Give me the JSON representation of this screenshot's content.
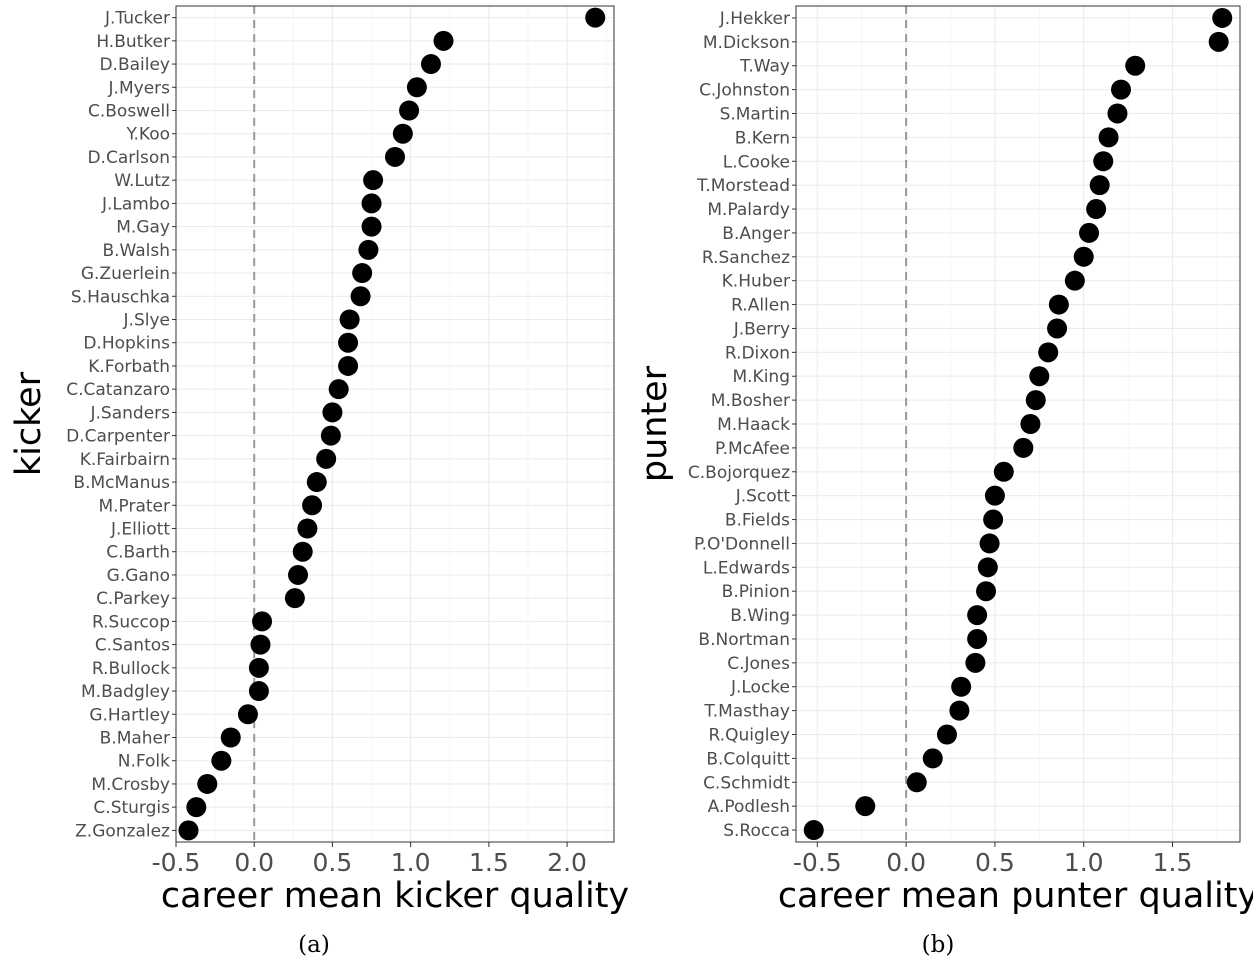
{
  "chart_data": [
    {
      "type": "scatter",
      "caption": "(a)",
      "xlabel": "career mean kicker quality",
      "ylabel": "kicker",
      "xlim": [
        -0.5,
        2.3
      ],
      "xticks": [
        "-0.5",
        "0.0",
        "0.5",
        "1.0",
        "1.5",
        "2.0"
      ],
      "xtick_values": [
        -0.5,
        0.0,
        0.5,
        1.0,
        1.5,
        2.0
      ],
      "reference_line_x": 0,
      "grid": true,
      "points": [
        {
          "label": "J.Tucker",
          "x": 2.18
        },
        {
          "label": "H.Butker",
          "x": 1.21
        },
        {
          "label": "D.Bailey",
          "x": 1.13
        },
        {
          "label": "J.Myers",
          "x": 1.04
        },
        {
          "label": "C.Boswell",
          "x": 0.99
        },
        {
          "label": "Y.Koo",
          "x": 0.95
        },
        {
          "label": "D.Carlson",
          "x": 0.9
        },
        {
          "label": "W.Lutz",
          "x": 0.76
        },
        {
          "label": "J.Lambo",
          "x": 0.75
        },
        {
          "label": "M.Gay",
          "x": 0.75
        },
        {
          "label": "B.Walsh",
          "x": 0.73
        },
        {
          "label": "G.Zuerlein",
          "x": 0.69
        },
        {
          "label": "S.Hauschka",
          "x": 0.68
        },
        {
          "label": "J.Slye",
          "x": 0.61
        },
        {
          "label": "D.Hopkins",
          "x": 0.6
        },
        {
          "label": "K.Forbath",
          "x": 0.6
        },
        {
          "label": "C.Catanzaro",
          "x": 0.54
        },
        {
          "label": "J.Sanders",
          "x": 0.5
        },
        {
          "label": "D.Carpenter",
          "x": 0.49
        },
        {
          "label": "K.Fairbairn",
          "x": 0.46
        },
        {
          "label": "B.McManus",
          "x": 0.4
        },
        {
          "label": "M.Prater",
          "x": 0.37
        },
        {
          "label": "J.Elliott",
          "x": 0.34
        },
        {
          "label": "C.Barth",
          "x": 0.31
        },
        {
          "label": "G.Gano",
          "x": 0.28
        },
        {
          "label": "C.Parkey",
          "x": 0.26
        },
        {
          "label": "R.Succop",
          "x": 0.05
        },
        {
          "label": "C.Santos",
          "x": 0.04
        },
        {
          "label": "R.Bullock",
          "x": 0.03
        },
        {
          "label": "M.Badgley",
          "x": 0.03
        },
        {
          "label": "G.Hartley",
          "x": -0.04
        },
        {
          "label": "B.Maher",
          "x": -0.15
        },
        {
          "label": "N.Folk",
          "x": -0.21
        },
        {
          "label": "M.Crosby",
          "x": -0.3
        },
        {
          "label": "C.Sturgis",
          "x": -0.37
        },
        {
          "label": "Z.Gonzalez",
          "x": -0.42
        }
      ]
    },
    {
      "type": "scatter",
      "caption": "(b)",
      "xlabel": "career mean punter quality",
      "ylabel": "punter",
      "xlim": [
        -0.62,
        1.88
      ],
      "xticks": [
        "-0.5",
        "0.0",
        "0.5",
        "1.0",
        "1.5"
      ],
      "xtick_values": [
        -0.5,
        0.0,
        0.5,
        1.0,
        1.5
      ],
      "reference_line_x": 0,
      "grid": true,
      "points": [
        {
          "label": "J.Hekker",
          "x": 1.78
        },
        {
          "label": "M.Dickson",
          "x": 1.76
        },
        {
          "label": "T.Way",
          "x": 1.29
        },
        {
          "label": "C.Johnston",
          "x": 1.21
        },
        {
          "label": "S.Martin",
          "x": 1.19
        },
        {
          "label": "B.Kern",
          "x": 1.14
        },
        {
          "label": "L.Cooke",
          "x": 1.11
        },
        {
          "label": "T.Morstead",
          "x": 1.09
        },
        {
          "label": "M.Palardy",
          "x": 1.07
        },
        {
          "label": "B.Anger",
          "x": 1.03
        },
        {
          "label": "R.Sanchez",
          "x": 1.0
        },
        {
          "label": "K.Huber",
          "x": 0.95
        },
        {
          "label": "R.Allen",
          "x": 0.86
        },
        {
          "label": "J.Berry",
          "x": 0.85
        },
        {
          "label": "R.Dixon",
          "x": 0.8
        },
        {
          "label": "M.King",
          "x": 0.75
        },
        {
          "label": "M.Bosher",
          "x": 0.73
        },
        {
          "label": "M.Haack",
          "x": 0.7
        },
        {
          "label": "P.McAfee",
          "x": 0.66
        },
        {
          "label": "C.Bojorquez",
          "x": 0.55
        },
        {
          "label": "J.Scott",
          "x": 0.5
        },
        {
          "label": "B.Fields",
          "x": 0.49
        },
        {
          "label": "P.O'Donnell",
          "x": 0.47
        },
        {
          "label": "L.Edwards",
          "x": 0.46
        },
        {
          "label": "B.Pinion",
          "x": 0.45
        },
        {
          "label": "B.Wing",
          "x": 0.4
        },
        {
          "label": "B.Nortman",
          "x": 0.4
        },
        {
          "label": "C.Jones",
          "x": 0.39
        },
        {
          "label": "J.Locke",
          "x": 0.31
        },
        {
          "label": "T.Masthay",
          "x": 0.3
        },
        {
          "label": "R.Quigley",
          "x": 0.23
        },
        {
          "label": "B.Colquitt",
          "x": 0.15
        },
        {
          "label": "C.Schmidt",
          "x": 0.06
        },
        {
          "label": "A.Podlesh",
          "x": -0.23
        },
        {
          "label": "S.Rocca",
          "x": -0.52
        }
      ]
    }
  ]
}
